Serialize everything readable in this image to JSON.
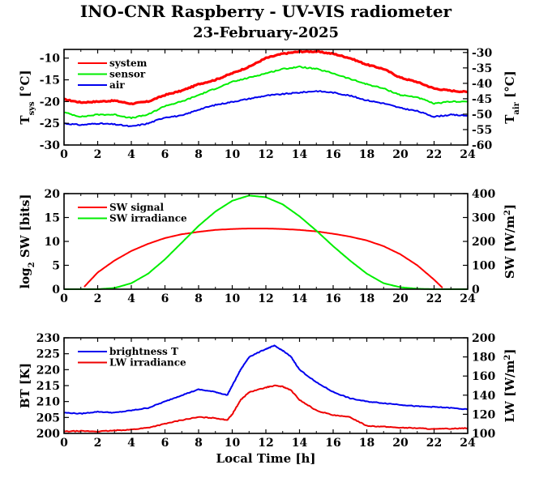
{
  "title": "INO-CNR Raspberry - UV-VIS radiometer",
  "subtitle": "23-February-2025",
  "xlabel": "Local Time [h]",
  "chart_data": [
    {
      "type": "line",
      "x_ticks": [
        0,
        2,
        4,
        6,
        8,
        10,
        12,
        14,
        16,
        18,
        20,
        22,
        24
      ],
      "xlim": [
        0,
        24
      ],
      "ylim_left": [
        -30,
        -8
      ],
      "ylim_right": [
        -60,
        -29
      ],
      "yticks_left": [
        -30,
        -25,
        -20,
        -15,
        -10
      ],
      "yticks_right": [
        -60,
        -55,
        -50,
        -45,
        -40,
        -35,
        -30
      ],
      "ylabel_left": {
        "main": "T",
        "sub": "sys",
        "unit": " [°C]"
      },
      "ylabel_right": {
        "main": "T",
        "sub": "air",
        "unit": " [°C]"
      },
      "series": [
        {
          "name": "system",
          "axis": "left",
          "color": "#ff0000",
          "x": [
            0,
            1,
            2,
            3,
            4,
            5,
            6,
            7,
            8,
            9,
            10,
            11,
            12,
            13,
            14,
            15,
            16,
            17,
            18,
            19,
            20,
            21,
            22,
            23,
            24
          ],
          "y": [
            -19.5,
            -20.2,
            -20.0,
            -19.8,
            -20.5,
            -20.0,
            -18.5,
            -17.5,
            -16.0,
            -15.0,
            -13.5,
            -12.0,
            -10.0,
            -9.0,
            -8.5,
            -8.5,
            -9.0,
            -10.0,
            -11.5,
            -12.5,
            -14.5,
            -15.5,
            -17.0,
            -17.5,
            -17.8
          ]
        },
        {
          "name": "sensor",
          "axis": "left",
          "color": "#00ee00",
          "x": [
            0,
            1,
            2,
            3,
            4,
            5,
            6,
            7,
            8,
            9,
            10,
            11,
            12,
            13,
            14,
            15,
            16,
            17,
            18,
            19,
            20,
            21,
            22,
            23,
            24
          ],
          "y": [
            -22.5,
            -23.5,
            -23.0,
            -23.0,
            -23.8,
            -23.0,
            -21.0,
            -20.0,
            -18.5,
            -17.0,
            -15.5,
            -14.5,
            -13.5,
            -12.5,
            -12.0,
            -12.5,
            -13.5,
            -14.8,
            -16.0,
            -17.0,
            -18.5,
            -19.0,
            -20.5,
            -20.0,
            -20.0
          ]
        },
        {
          "name": "air",
          "axis": "right",
          "color": "#0000ee",
          "x": [
            0,
            1,
            2,
            3,
            4,
            5,
            6,
            7,
            8,
            9,
            10,
            11,
            12,
            13,
            14,
            15,
            16,
            17,
            18,
            19,
            20,
            21,
            22,
            23,
            24
          ],
          "y": [
            -53.0,
            -53.5,
            -53.0,
            -53.3,
            -54.0,
            -53.0,
            -51.0,
            -50.5,
            -48.5,
            -47.0,
            -46.0,
            -45.0,
            -44.0,
            -43.5,
            -43.0,
            -42.5,
            -43.0,
            -44.0,
            -45.5,
            -46.5,
            -48.0,
            -49.0,
            -50.8,
            -50.2,
            -50.5
          ]
        }
      ],
      "legend": "top-left"
    },
    {
      "type": "line",
      "x_ticks": [
        0,
        2,
        4,
        6,
        8,
        10,
        12,
        14,
        16,
        18,
        20,
        22,
        24
      ],
      "xlim": [
        0,
        24
      ],
      "ylim_left": [
        0,
        20
      ],
      "ylim_right": [
        0,
        400
      ],
      "yticks_left": [
        0,
        5,
        10,
        15,
        20
      ],
      "yticks_right": [
        0,
        100,
        200,
        300,
        400
      ],
      "ylabel_left": {
        "main": "log",
        "sub": "2",
        "unit": " SW [bits]"
      },
      "ylabel_right": {
        "main": "SW [W/m",
        "sup": "2",
        "unit": "]"
      },
      "series": [
        {
          "name": "SW signal",
          "axis": "left",
          "color": "#ff0000",
          "x": [
            1.2,
            2,
            3,
            4,
            5,
            6,
            7,
            8,
            9,
            10,
            11,
            12,
            13,
            14,
            15,
            16,
            17,
            18,
            19,
            20,
            21,
            22,
            22.5
          ],
          "y": [
            0.5,
            3.5,
            6.0,
            8.0,
            9.5,
            10.7,
            11.5,
            12.0,
            12.4,
            12.6,
            12.7,
            12.7,
            12.6,
            12.4,
            12.1,
            11.6,
            11.0,
            10.2,
            9.0,
            7.3,
            5.0,
            2.0,
            0.3
          ]
        },
        {
          "name": "SW irradiance",
          "axis": "right",
          "color": "#00ee00",
          "x": [
            0,
            2,
            3,
            4,
            5,
            6,
            7,
            8,
            9,
            10,
            11,
            12,
            13,
            14,
            15,
            16,
            17,
            18,
            19,
            20,
            21,
            22,
            24
          ],
          "y": [
            0,
            0,
            5,
            25,
            65,
            125,
            195,
            265,
            325,
            370,
            392,
            385,
            355,
            305,
            245,
            180,
            120,
            65,
            25,
            8,
            2,
            0,
            0
          ]
        }
      ],
      "legend": "top-left"
    },
    {
      "type": "line",
      "x_ticks": [
        0,
        2,
        4,
        6,
        8,
        10,
        12,
        14,
        16,
        18,
        20,
        22,
        24
      ],
      "xlim": [
        0,
        24
      ],
      "ylim_left": [
        200,
        230
      ],
      "ylim_right": [
        100,
        200
      ],
      "yticks_left": [
        200,
        205,
        210,
        215,
        220,
        225,
        230
      ],
      "yticks_right": [
        100,
        120,
        140,
        160,
        180,
        200
      ],
      "ylabel_left": {
        "main": "BT [K]"
      },
      "ylabel_right": {
        "main": "LW [W/m",
        "sup": "2",
        "unit": "]"
      },
      "series": [
        {
          "name": "brightness T",
          "axis": "left",
          "color": "#0000ee",
          "x": [
            0,
            1,
            2,
            3,
            4,
            5,
            6,
            7,
            8,
            9,
            9.7,
            10,
            10.5,
            11,
            12,
            12.5,
            13,
            13.5,
            14,
            15,
            16,
            17,
            18,
            19,
            20,
            21,
            22,
            23,
            24
          ],
          "y": [
            206.5,
            206.2,
            206.8,
            206.5,
            207.2,
            208.0,
            210.0,
            212.0,
            213.8,
            213.0,
            212.0,
            215.0,
            220.0,
            224.0,
            226.5,
            227.5,
            226.0,
            224.0,
            220.0,
            216.0,
            213.0,
            211.0,
            210.0,
            209.5,
            209.0,
            208.5,
            208.3,
            208.0,
            207.5
          ]
        },
        {
          "name": "LW irradiance",
          "axis": "right",
          "color": "#ee0000",
          "x": [
            0,
            1,
            2,
            3,
            4,
            5,
            6,
            7,
            8,
            9,
            9.7,
            10,
            10.5,
            11,
            12,
            12.5,
            13,
            13.5,
            14,
            15,
            16,
            17,
            18,
            19,
            20,
            21,
            22,
            23,
            24
          ],
          "y": [
            102,
            102.5,
            102,
            103,
            104,
            106,
            110,
            114,
            117,
            116,
            114,
            120,
            135,
            143,
            148,
            150,
            149,
            145,
            135,
            124,
            119,
            117,
            108,
            107,
            106,
            105.5,
            104.5,
            105,
            105.5
          ]
        }
      ],
      "legend": "top-left"
    }
  ]
}
